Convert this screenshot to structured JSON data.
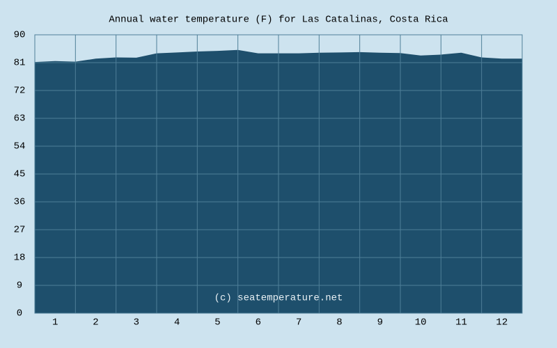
{
  "chart_data": {
    "type": "area",
    "title": "Annual water temperature (F) for Las Catalinas, Costa Rica",
    "annotation": "(c) seatemperature.net",
    "x": [
      0,
      0.5,
      1,
      1.5,
      2,
      2.5,
      3,
      3.5,
      4,
      4.5,
      5,
      5.5,
      6,
      6.5,
      7,
      7.5,
      8,
      8.5,
      9,
      9.5,
      10,
      10.5,
      11,
      11.5,
      12
    ],
    "values": [
      81.2,
      81.5,
      81.3,
      82.3,
      82.7,
      82.6,
      84.0,
      84.3,
      84.6,
      84.8,
      85.1,
      84.0,
      84.0,
      84.0,
      84.2,
      84.3,
      84.4,
      84.2,
      84.1,
      83.3,
      83.6,
      84.2,
      82.7,
      82.3,
      82.3
    ],
    "color": "#1e4f6c",
    "xlim": [
      0,
      12
    ],
    "xticks": [
      {
        "value": 0.5,
        "label": "1"
      },
      {
        "value": 1.5,
        "label": "2"
      },
      {
        "value": 2.5,
        "label": "3"
      },
      {
        "value": 3.5,
        "label": "4"
      },
      {
        "value": 4.5,
        "label": "5"
      },
      {
        "value": 5.5,
        "label": "6"
      },
      {
        "value": 6.5,
        "label": "7"
      },
      {
        "value": 7.5,
        "label": "8"
      },
      {
        "value": 8.5,
        "label": "9"
      },
      {
        "value": 9.5,
        "label": "10"
      },
      {
        "value": 10.5,
        "label": "11"
      },
      {
        "value": 11.5,
        "label": "12"
      }
    ],
    "ylim": [
      0,
      90
    ],
    "yticks": [
      0,
      9,
      18,
      27,
      36,
      45,
      54,
      63,
      72,
      81,
      90
    ],
    "grid": true
  }
}
